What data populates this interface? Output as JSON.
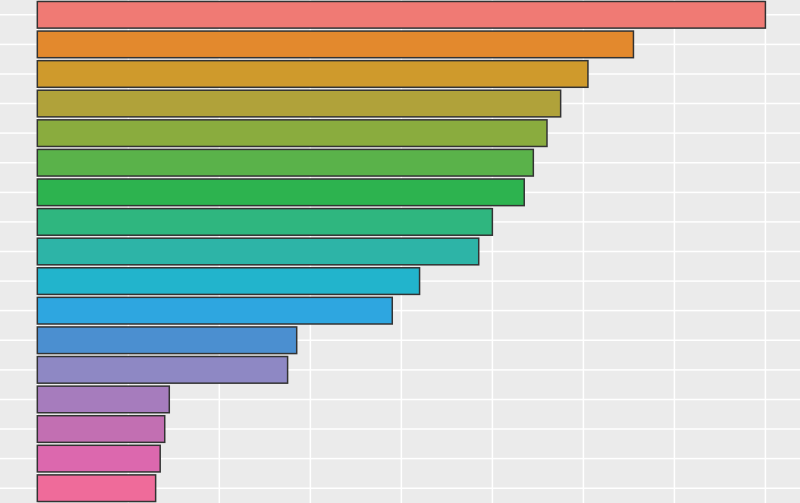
{
  "chart_data": {
    "type": "barh",
    "categories": [
      null,
      null,
      null,
      null,
      null,
      null,
      null,
      null,
      null,
      null,
      null,
      null,
      null,
      null,
      null,
      null,
      null
    ],
    "values": [
      8.0,
      6.55,
      6.05,
      5.75,
      5.6,
      5.45,
      5.35,
      5.0,
      4.85,
      4.2,
      3.9,
      2.85,
      2.75,
      1.45,
      1.4,
      1.35,
      1.3
    ],
    "colors": [
      "#f07a74",
      "#e3892d",
      "#cf9a2c",
      "#b0a23a",
      "#8aac3e",
      "#5ab24a",
      "#2db34f",
      "#2fb67f",
      "#2db4a7",
      "#22b4cc",
      "#2ea6e0",
      "#4b8fd0",
      "#8e88c4",
      "#a67cbd",
      "#c26fb2",
      "#dc68ae",
      "#ef6b9a"
    ],
    "xlim": [
      -0.41,
      8.38
    ],
    "xticks": [
      0,
      1,
      2,
      3,
      4,
      5,
      6,
      7,
      8
    ],
    "grid": true
  }
}
